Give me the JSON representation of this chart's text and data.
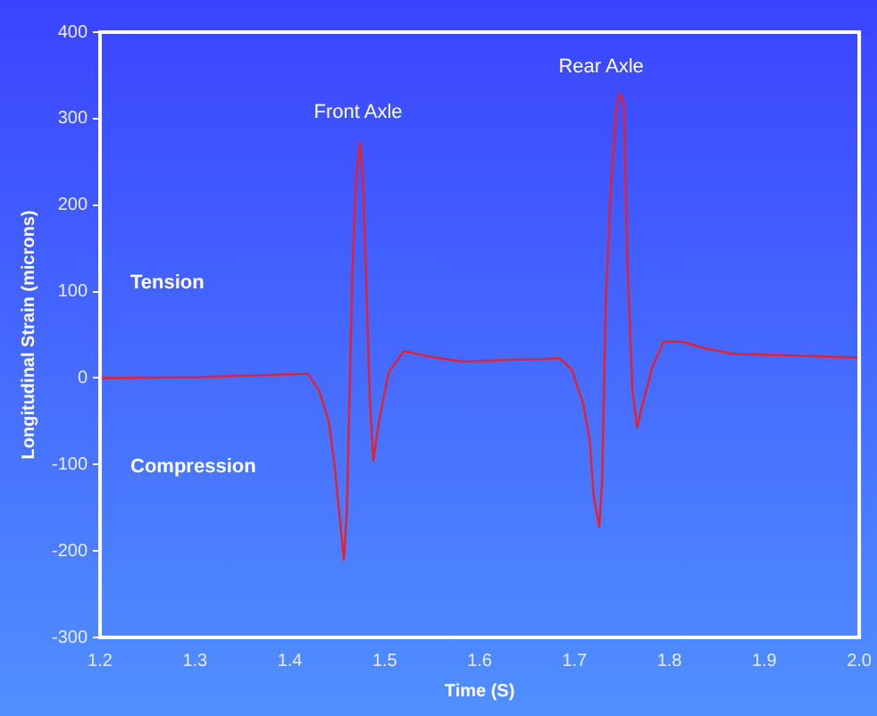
{
  "chart_data": {
    "type": "line",
    "xlabel": "Time (S)",
    "ylabel": "Longitudinal Strain (microns)",
    "x": [
      1.2,
      1.3,
      1.362,
      1.419,
      1.431,
      1.441,
      1.447,
      1.457,
      1.46,
      1.463,
      1.466,
      1.47,
      1.474,
      1.477,
      1.481,
      1.484,
      1.488,
      1.494,
      1.504,
      1.52,
      1.551,
      1.583,
      1.627,
      1.665,
      1.684,
      1.697,
      1.709,
      1.716,
      1.72,
      1.726,
      1.729,
      1.733,
      1.739,
      1.744,
      1.748,
      1.752,
      1.756,
      1.761,
      1.766,
      1.772,
      1.782,
      1.794,
      1.813,
      1.835,
      1.867,
      1.93,
      1.99,
      2.0
    ],
    "series": [
      {
        "color": "#e8202a",
        "values": [
          0,
          1,
          3,
          5,
          -15,
          -50,
          -100,
          -210,
          -156,
          -15,
          127,
          233,
          272,
          233,
          91,
          -15,
          -96,
          -50,
          6,
          31,
          24,
          19,
          21,
          22,
          23,
          10,
          -29,
          -72,
          -135,
          -172,
          -121,
          91,
          233,
          311,
          329,
          318,
          127,
          -15,
          -57,
          -29,
          13,
          42,
          42,
          35,
          28,
          26,
          24,
          24
        ]
      }
    ],
    "xlim": [
      1.2,
      2.0
    ],
    "xticks": [
      1.2,
      1.3,
      1.4,
      1.5,
      1.6,
      1.7,
      1.8,
      1.9,
      {
        "value": 2,
        "label": "2.0"
      }
    ],
    "ylim": [
      -300,
      400
    ],
    "yticks": [
      -300,
      -200,
      -100,
      0,
      100,
      200,
      300,
      400
    ],
    "grid": false,
    "legend": false,
    "marker": "none",
    "line_style": "solid",
    "annotations": [
      "Front Axle",
      "Rear Axle",
      "Tension",
      "Compression"
    ]
  }
}
